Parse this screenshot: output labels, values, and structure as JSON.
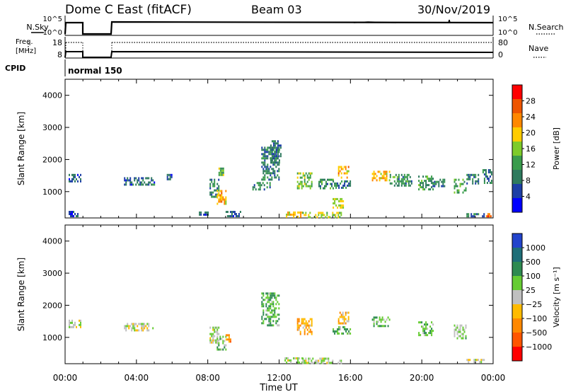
{
  "header": {
    "title": "Dome C East (fitACF)",
    "beam": "Beam 03",
    "date": "30/Nov/2019"
  },
  "noise_panel": {
    "left_label": "N.Sky",
    "right_label": "N.Search",
    "left_ticks": [
      "10^5",
      "10^0"
    ],
    "right_ticks": [
      "10^5",
      "10^0"
    ]
  },
  "freq_panel": {
    "left_label_1": "Freq.",
    "left_label_2": "[MHz]",
    "right_label": "Nave",
    "left_ticks": [
      "18",
      "8"
    ],
    "right_ticks": [
      "80",
      "0"
    ]
  },
  "cpid": {
    "label": "CPID",
    "mode": "normal 150"
  },
  "x_axis": {
    "ticks": [
      "00:00",
      "04:00",
      "08:00",
      "12:00",
      "16:00",
      "20:00",
      "00:00"
    ],
    "label": "Time UT"
  },
  "chart_data": [
    {
      "type": "heatmap",
      "panel": "power",
      "ylabel": "Slant Range [km]",
      "ylim": [
        180,
        4500
      ],
      "y_ticks": [
        "4000",
        "3000",
        "2000",
        "1000"
      ],
      "xlim_hours": [
        0,
        24
      ],
      "colorbar_label": "Power [dB]",
      "colorbar_ticks": [
        "28",
        "24",
        "20",
        "16",
        "12",
        "8",
        "4"
      ],
      "colors": [
        "#0000ff",
        "#1c3ea6",
        "#2e7a5e",
        "#3a9c4c",
        "#7ecb2a",
        "#ffcc00",
        "#ff8800",
        "#ee5500",
        "#ff0000"
      ],
      "value_range": [
        0,
        30
      ],
      "regions": [
        {
          "t": [
            0.2,
            0.9
          ],
          "r": [
            1350,
            1550
          ],
          "v": 6
        },
        {
          "t": [
            0.2,
            0.7
          ],
          "r": [
            250,
            400
          ],
          "v": 5
        },
        {
          "t": [
            3.3,
            5.0
          ],
          "r": [
            1200,
            1450
          ],
          "v": 7
        },
        {
          "t": [
            5.7,
            6.0
          ],
          "r": [
            1400,
            1550
          ],
          "v": 6
        },
        {
          "t": [
            7.5,
            8.0
          ],
          "r": [
            250,
            380
          ],
          "v": 6
        },
        {
          "t": [
            8.1,
            8.6
          ],
          "r": [
            850,
            1400
          ],
          "v": 9
        },
        {
          "t": [
            8.5,
            9.0
          ],
          "r": [
            650,
            1050
          ],
          "v": 20
        },
        {
          "t": [
            8.6,
            8.9
          ],
          "r": [
            1550,
            1750
          ],
          "v": 13
        },
        {
          "t": [
            9.0,
            9.8
          ],
          "r": [
            250,
            400
          ],
          "v": 6
        },
        {
          "t": [
            10.5,
            11.5
          ],
          "r": [
            1100,
            1300
          ],
          "v": 9
        },
        {
          "t": [
            11.0,
            12.0
          ],
          "r": [
            1400,
            2400
          ],
          "v": 8
        },
        {
          "t": [
            11.5,
            12.1
          ],
          "r": [
            1900,
            2600
          ],
          "v": 8
        },
        {
          "t": [
            12.3,
            13.3
          ],
          "r": [
            230,
            380
          ],
          "v": 20
        },
        {
          "t": [
            13.3,
            15.5
          ],
          "r": [
            220,
            370
          ],
          "v": 16
        },
        {
          "t": [
            13.0,
            13.8
          ],
          "r": [
            1100,
            1600
          ],
          "v": 14
        },
        {
          "t": [
            14.2,
            15.0
          ],
          "r": [
            1100,
            1400
          ],
          "v": 10
        },
        {
          "t": [
            15.3,
            15.9
          ],
          "r": [
            1450,
            1800
          ],
          "v": 20
        },
        {
          "t": [
            15.0,
            15.6
          ],
          "r": [
            500,
            800
          ],
          "v": 17
        },
        {
          "t": [
            15.0,
            16.0
          ],
          "r": [
            1100,
            1350
          ],
          "v": 9
        },
        {
          "t": [
            17.2,
            18.2
          ],
          "r": [
            1350,
            1650
          ],
          "v": 19
        },
        {
          "t": [
            18.2,
            19.4
          ],
          "r": [
            1200,
            1550
          ],
          "v": 10
        },
        {
          "t": [
            19.8,
            20.6
          ],
          "r": [
            1100,
            1500
          ],
          "v": 11
        },
        {
          "t": [
            20.6,
            21.3
          ],
          "r": [
            1200,
            1400
          ],
          "v": 8
        },
        {
          "t": [
            21.8,
            22.5
          ],
          "r": [
            1000,
            1400
          ],
          "v": 12
        },
        {
          "t": [
            22.5,
            23.5
          ],
          "r": [
            230,
            330
          ],
          "v": 8
        },
        {
          "t": [
            22.5,
            23.2
          ],
          "r": [
            1250,
            1550
          ],
          "v": 9
        },
        {
          "t": [
            23.4,
            23.9
          ],
          "r": [
            1300,
            1700
          ],
          "v": 8
        },
        {
          "t": [
            23.6,
            23.9
          ],
          "r": [
            230,
            330
          ],
          "v": 24
        }
      ]
    },
    {
      "type": "heatmap",
      "panel": "velocity",
      "ylabel": "Slant Range [km]",
      "ylim": [
        180,
        4500
      ],
      "y_ticks": [
        "4000",
        "3000",
        "2000",
        "1000"
      ],
      "xlim_hours": [
        0,
        24
      ],
      "colorbar_label": "Velocity [m s⁻¹]",
      "colorbar_ticks": [
        "1000",
        "500",
        "100",
        "25",
        "−25",
        "−100",
        "−500",
        "−1000"
      ],
      "colors": [
        "#2244cc",
        "#1e6e78",
        "#2e8a50",
        "#66cc33",
        "#c0c0c0",
        "#ffbb00",
        "#ff8800",
        "#ff5500",
        "#ff0000"
      ],
      "value_range": [
        -1000,
        1000
      ],
      "regions": [
        {
          "t": [
            0.2,
            0.9
          ],
          "r": [
            1350,
            1550
          ],
          "v": 0
        },
        {
          "t": [
            3.3,
            5.0
          ],
          "r": [
            1200,
            1450
          ],
          "v": 0
        },
        {
          "t": [
            8.1,
            8.6
          ],
          "r": [
            850,
            1400
          ],
          "v": 50
        },
        {
          "t": [
            8.5,
            9.0
          ],
          "r": [
            650,
            1050
          ],
          "v": 200
        },
        {
          "t": [
            9.0,
            9.3
          ],
          "r": [
            900,
            1100
          ],
          "v": -400
        },
        {
          "t": [
            11.0,
            12.0
          ],
          "r": [
            1400,
            2400
          ],
          "v": 300
        },
        {
          "t": [
            12.3,
            13.3
          ],
          "r": [
            230,
            380
          ],
          "v": 80
        },
        {
          "t": [
            13.3,
            15.5
          ],
          "r": [
            220,
            370
          ],
          "v": 60
        },
        {
          "t": [
            13.0,
            13.8
          ],
          "r": [
            1100,
            1600
          ],
          "v": -300
        },
        {
          "t": [
            15.3,
            15.9
          ],
          "r": [
            1450,
            1800
          ],
          "v": -200
        },
        {
          "t": [
            15.0,
            16.0
          ],
          "r": [
            1100,
            1350
          ],
          "v": 300
        },
        {
          "t": [
            17.2,
            18.2
          ],
          "r": [
            1350,
            1650
          ],
          "v": 250
        },
        {
          "t": [
            19.8,
            20.6
          ],
          "r": [
            1100,
            1500
          ],
          "v": 200
        },
        {
          "t": [
            21.8,
            22.5
          ],
          "r": [
            1000,
            1400
          ],
          "v": 150
        },
        {
          "t": [
            22.5,
            23.5
          ],
          "r": [
            230,
            330
          ],
          "v": 0
        }
      ]
    }
  ]
}
